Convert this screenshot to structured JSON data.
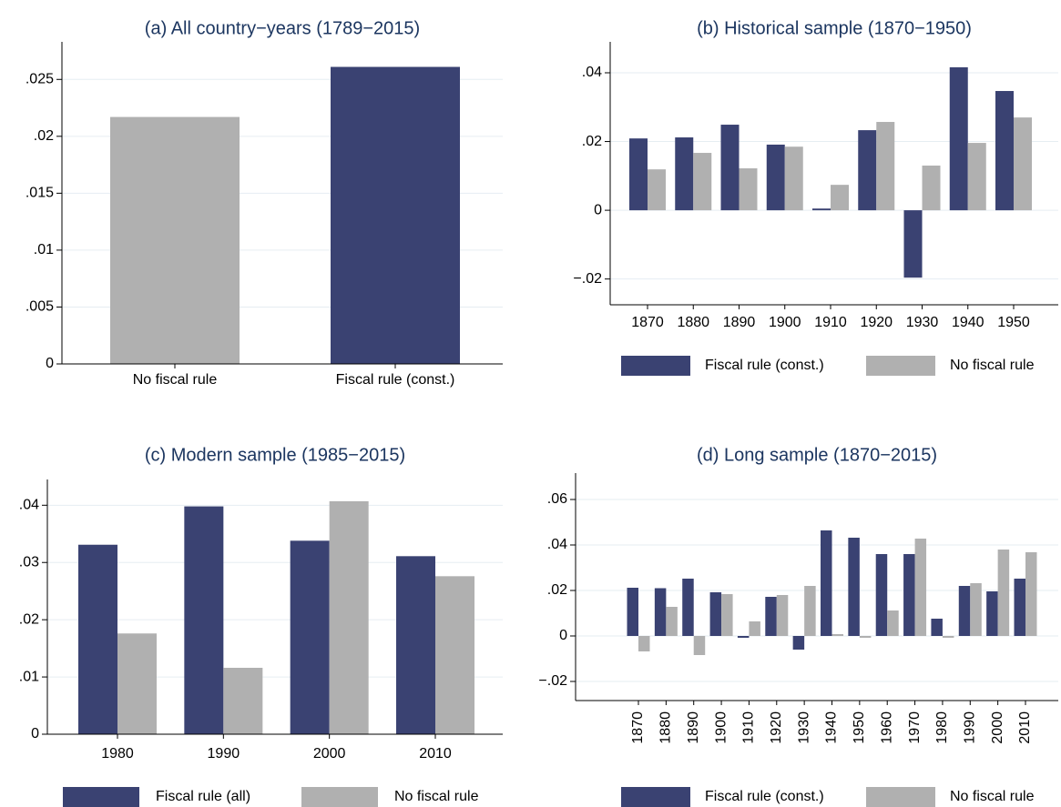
{
  "chart_data": [
    {
      "type": "bar",
      "title": "(a) All country−years (1789−2015)",
      "categories": [
        "No fiscal rule",
        "Fiscal rule (const.)"
      ],
      "values": [
        0.0217,
        0.0261
      ],
      "colors": [
        "#b0b0b0",
        "#3a4272"
      ],
      "ylim": [
        0,
        0.0283
      ],
      "yticks": [
        0,
        {
          "value": 0.005,
          "label": ".005"
        },
        {
          "value": 0.01,
          "label": ".01"
        },
        {
          "value": 0.015,
          "label": ".015"
        },
        {
          "value": 0.02,
          "label": ".02"
        },
        {
          "value": 0.025,
          "label": ".025"
        }
      ],
      "grid": true
    },
    {
      "type": "bar",
      "title": "(b) Historical sample (1870−1950)",
      "categories": [
        "1870",
        "1880",
        "1890",
        "1900",
        "1910",
        "1920",
        "1930",
        "1940",
        "1950"
      ],
      "series": [
        {
          "name": "Fiscal rule (const.)",
          "color": "#3a4272",
          "values": [
            0.0209,
            0.0212,
            0.0249,
            0.0191,
            0.0005,
            0.0233,
            -0.0196,
            0.0416,
            0.0347
          ]
        },
        {
          "name": "No fiscal rule",
          "color": "#b0b0b0",
          "values": [
            0.0119,
            0.0167,
            0.0122,
            0.0185,
            0.0074,
            0.0257,
            0.013,
            0.0196,
            0.027
          ]
        }
      ],
      "ylim": [
        -0.0275,
        0.049
      ],
      "yticks": [
        {
          "value": -0.02,
          "label": "−.02"
        },
        0,
        {
          "value": 0.02,
          "label": ".02"
        },
        {
          "value": 0.04,
          "label": ".04"
        }
      ],
      "grid": true,
      "legend": "bottom"
    },
    {
      "type": "bar",
      "title": "(c) Modern sample (1985−2015)",
      "categories": [
        "1980",
        "1990",
        "2000",
        "2010"
      ],
      "series": [
        {
          "name": "Fiscal rule (all)",
          "color": "#3a4272",
          "values": [
            0.0331,
            0.0398,
            0.0338,
            0.0311
          ]
        },
        {
          "name": "No fiscal rule",
          "color": "#b0b0b0",
          "values": [
            0.0176,
            0.0116,
            0.0407,
            0.0276
          ]
        }
      ],
      "ylim": [
        0,
        0.0445
      ],
      "yticks": [
        0,
        {
          "value": 0.01,
          "label": ".01"
        },
        {
          "value": 0.02,
          "label": ".02"
        },
        {
          "value": 0.03,
          "label": ".03"
        },
        {
          "value": 0.04,
          "label": ".04"
        }
      ],
      "grid": true,
      "legend": "bottom"
    },
    {
      "type": "bar",
      "title": "(d) Long sample (1870−2015)",
      "categories": [
        "1870",
        "1880",
        "1890",
        "1900",
        "1910",
        "1920",
        "1930",
        "1940",
        "1950",
        "1960",
        "1970",
        "1980",
        "1990",
        "2000",
        "2010"
      ],
      "series": [
        {
          "name": "Fiscal rule (const.)",
          "color": "#3a4272",
          "values": [
            0.0212,
            0.021,
            0.0252,
            0.0192,
            -0.0008,
            0.0172,
            -0.006,
            0.0464,
            0.0432,
            0.036,
            0.036,
            0.0076,
            0.022,
            0.0196,
            0.0252
          ]
        },
        {
          "name": "No fiscal rule",
          "color": "#b0b0b0",
          "values": [
            -0.0068,
            0.0128,
            -0.0084,
            0.0184,
            0.0064,
            0.018,
            0.022,
            0.0008,
            -0.0008,
            0.0112,
            0.0428,
            -0.0008,
            0.0232,
            0.038,
            0.0368
          ]
        }
      ],
      "ylim": [
        -0.0284,
        0.0716
      ],
      "yticks": [
        {
          "value": -0.02,
          "label": "−.02"
        },
        0,
        {
          "value": 0.02,
          "label": ".02"
        },
        {
          "value": 0.04,
          "label": ".04"
        },
        {
          "value": 0.06,
          "label": ".06"
        }
      ],
      "grid": true,
      "legend": "bottom"
    }
  ]
}
